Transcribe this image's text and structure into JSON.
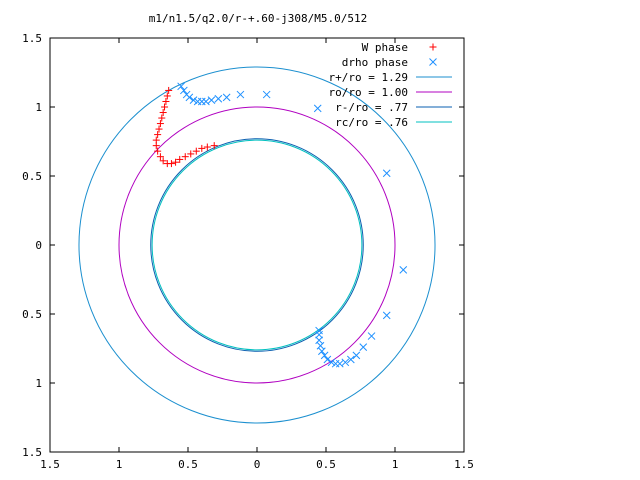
{
  "chart_data": {
    "type": "scatter",
    "title": "m1/n1.5/q2.0/r-+.60-j308/M5.0/512",
    "xlabel": "",
    "ylabel": "",
    "xlim": [
      -1.5,
      1.5
    ],
    "ylim": [
      -1.5,
      1.5
    ],
    "x_ticks": [
      -1.5,
      -1,
      -0.5,
      0,
      0.5,
      1,
      1.5
    ],
    "y_ticks": [
      -1.5,
      -1,
      -0.5,
      0,
      0.5,
      1,
      1.5
    ],
    "x_tick_labels": [
      "1.5",
      "1",
      "0.5",
      "0",
      "0.5",
      "1",
      "1.5"
    ],
    "y_tick_labels": [
      "1.5",
      "1",
      "0.5",
      "0",
      "0.5",
      "1",
      "1.5"
    ],
    "grid": false,
    "legend_position": "top-right",
    "series": [
      {
        "name": "W phase",
        "marker": "plus",
        "color": "#ff0000",
        "points": [
          [
            -0.64,
            1.12
          ],
          [
            -0.65,
            1.08
          ],
          [
            -0.66,
            1.04
          ],
          [
            -0.67,
            1.0
          ],
          [
            -0.68,
            0.96
          ],
          [
            -0.69,
            0.92
          ],
          [
            -0.7,
            0.88
          ],
          [
            -0.71,
            0.84
          ],
          [
            -0.72,
            0.8
          ],
          [
            -0.73,
            0.76
          ],
          [
            -0.73,
            0.72
          ],
          [
            -0.72,
            0.68
          ],
          [
            -0.7,
            0.64
          ],
          [
            -0.68,
            0.61
          ],
          [
            -0.65,
            0.59
          ],
          [
            -0.62,
            0.59
          ],
          [
            -0.59,
            0.6
          ],
          [
            -0.56,
            0.62
          ],
          [
            -0.52,
            0.64
          ],
          [
            -0.48,
            0.66
          ],
          [
            -0.44,
            0.68
          ],
          [
            -0.4,
            0.7
          ],
          [
            -0.36,
            0.71
          ],
          [
            -0.31,
            0.72
          ]
        ]
      },
      {
        "name": "drho phase",
        "marker": "cross",
        "color": "#1e90ff",
        "points": [
          [
            -0.55,
            1.15
          ],
          [
            -0.53,
            1.12
          ],
          [
            -0.51,
            1.09
          ],
          [
            -0.49,
            1.07
          ],
          [
            -0.46,
            1.05
          ],
          [
            -0.43,
            1.04
          ],
          [
            -0.4,
            1.04
          ],
          [
            -0.37,
            1.04
          ],
          [
            -0.33,
            1.05
          ],
          [
            -0.28,
            1.06
          ],
          [
            -0.22,
            1.07
          ],
          [
            -0.12,
            1.09
          ],
          [
            0.07,
            1.09
          ],
          [
            0.44,
            0.99
          ],
          [
            0.94,
            0.52
          ],
          [
            1.06,
            -0.18
          ],
          [
            0.94,
            -0.51
          ],
          [
            0.83,
            -0.66
          ],
          [
            0.77,
            -0.74
          ],
          [
            0.72,
            -0.8
          ],
          [
            0.68,
            -0.83
          ],
          [
            0.64,
            -0.85
          ],
          [
            0.6,
            -0.86
          ],
          [
            0.57,
            -0.86
          ],
          [
            0.54,
            -0.85
          ],
          [
            0.51,
            -0.83
          ],
          [
            0.49,
            -0.8
          ],
          [
            0.47,
            -0.77
          ],
          [
            0.46,
            -0.73
          ],
          [
            0.45,
            -0.69
          ],
          [
            0.45,
            -0.65
          ],
          [
            0.45,
            -0.62
          ]
        ]
      },
      {
        "name": "r+/ro = 1.29",
        "type": "circle",
        "radius": 1.29,
        "color": "#1b8fcf"
      },
      {
        "name": "ro/ro = 1.00",
        "type": "circle",
        "radius": 1.0,
        "color": "#b000c0"
      },
      {
        "name": "r-/ro = .77",
        "type": "circle",
        "radius": 0.77,
        "color": "#0a5fb0"
      },
      {
        "name": "rc/ro = .76",
        "type": "circle",
        "radius": 0.76,
        "color": "#00c0c0"
      }
    ]
  }
}
